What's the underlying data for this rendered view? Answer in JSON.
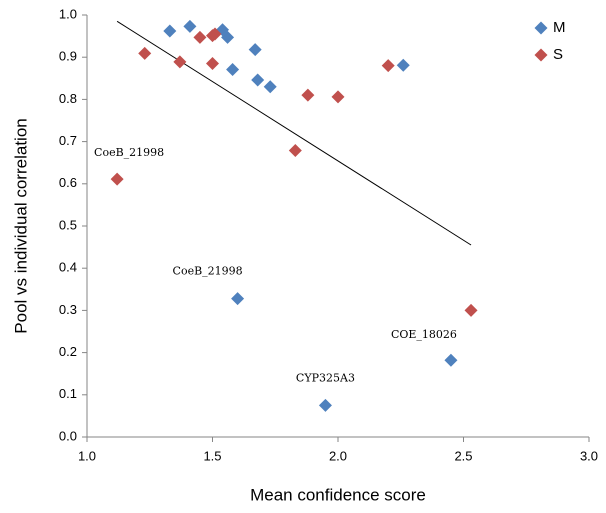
{
  "chart_data": {
    "type": "scatter",
    "x_label": "Mean confidence score",
    "y_label": "Pool vs individual correlation",
    "xlim": [
      1,
      3
    ],
    "ylim": [
      0,
      1
    ],
    "xticks": [
      {
        "value": 1,
        "label": "1.0"
      },
      1.5,
      {
        "value": 2,
        "label": "2.0"
      },
      2.5,
      {
        "value": 3,
        "label": "3.0"
      }
    ],
    "yticks": [
      {
        "value": 0,
        "label": "0.0"
      },
      0.1,
      0.2,
      0.3,
      0.4,
      0.5,
      0.6,
      0.7,
      0.8,
      0.9,
      {
        "value": 1,
        "label": "1.0"
      }
    ],
    "legend": "top-right",
    "series": [
      {
        "name": "M",
        "color": "#4f81bd",
        "x": [
          1.33,
          1.41,
          1.54,
          1.56,
          1.67,
          1.58,
          1.68,
          1.73,
          2.26,
          1.6,
          1.95,
          2.45
        ],
        "values": [
          0.962,
          0.973,
          0.965,
          0.947,
          0.918,
          0.871,
          0.846,
          0.83,
          0.881,
          0.328,
          0.075,
          0.182
        ]
      },
      {
        "name": "S",
        "color": "#c0504d",
        "x": [
          1.12,
          1.23,
          1.37,
          1.45,
          1.5,
          1.51,
          1.5,
          1.83,
          1.88,
          2.0,
          2.2,
          2.53
        ],
        "values": [
          0.611,
          0.909,
          0.889,
          0.947,
          0.951,
          0.955,
          0.885,
          0.679,
          0.81,
          0.806,
          0.88,
          0.3
        ]
      }
    ],
    "trendline": {
      "color": "#000000",
      "x": [
        1.12,
        2.53
      ],
      "y": [
        0.985,
        0.455
      ]
    },
    "annotations": [
      "CoeB_21998",
      "CoeB_21998",
      "CYP325A3",
      "COE_18026"
    ]
  }
}
